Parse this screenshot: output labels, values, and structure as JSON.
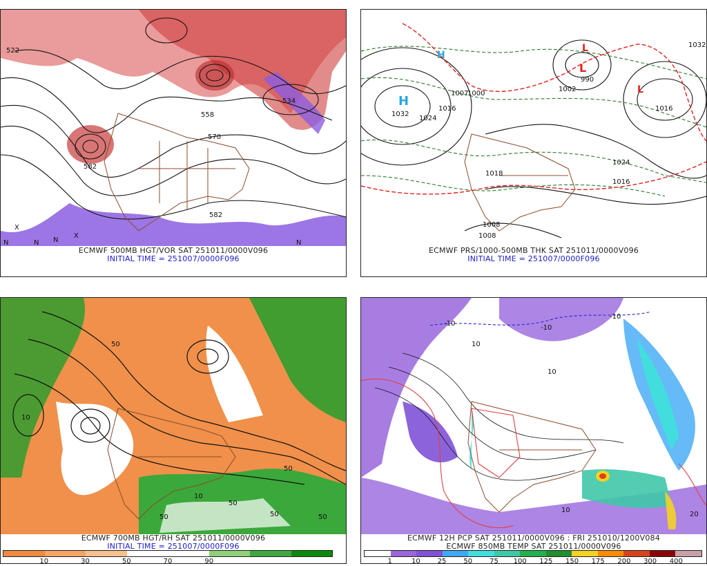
{
  "panels": [
    {
      "caption_line1": "ECMWF 500MB HGT/VOR SAT 251011/0000V096",
      "caption_line2": "INITIAL TIME = 251007/0000F096",
      "contour_labels": [
        "522",
        "582",
        "570",
        "558",
        "534",
        "582"
      ],
      "markers": [
        "N",
        "N",
        "N",
        "X",
        "X",
        "N"
      ]
    },
    {
      "caption_line1": "ECMWF PRS/1000-500MB THK SAT 251011/0000V096",
      "caption_line2": "INITIAL TIME = 251007/0000F096",
      "contour_labels": [
        "1032",
        "1024",
        "1016",
        "1000",
        "1007",
        "990",
        "1002",
        "1016",
        "1024",
        "1016",
        "1018",
        "1008",
        "1008",
        "1032"
      ],
      "highs": [
        "H",
        "H"
      ],
      "lows": [
        "L",
        "L",
        "L"
      ]
    },
    {
      "caption_line1": "ECMWF 700MB HGT/RH SAT 251011/0000V096",
      "caption_line2": "INITIAL TIME = 251007/0000F096",
      "contour_labels": [
        "10",
        "50",
        "50",
        "10",
        "50",
        "50",
        "50",
        "50"
      ],
      "legend_ticks": [
        "10",
        "30",
        "50",
        "70",
        "90"
      ],
      "legend_colors": [
        "#f08a40",
        "#f4a564",
        "#f7c08e",
        "#ffffff",
        "#ffffff",
        "#8fd07a",
        "#40a840",
        "#0a8a0a"
      ]
    },
    {
      "caption_line1": "ECMWF 12H PCP SAT 251011/0000V096 : FRI 251010/1200V084",
      "caption_line2": "ECMWF 850MB TEMP SAT 251011/0000V096",
      "contour_labels": [
        "-10",
        "-10",
        "-10",
        "10",
        "10",
        "10",
        "20"
      ],
      "legend_ticks": [
        "1",
        "10",
        "25",
        "50",
        "75",
        "100",
        "125",
        "150",
        "175",
        "200",
        "300",
        "400"
      ],
      "legend_colors": [
        "#ffffff",
        "#9966dd",
        "#7f52d6",
        "#3fa9f5",
        "#42dede",
        "#3fc8a8",
        "#22b14c",
        "#1f8f2f",
        "#f5d223",
        "#ff8c00",
        "#d8431c",
        "#8b0000",
        "#c8a0a8"
      ]
    }
  ],
  "colors": {
    "vorticity_red": "#d43030",
    "vorticity_purple": "#8855dd",
    "map_borders": "#8b4a2a",
    "pressure_contours": "#111111",
    "thickness_green": "#2a7a2a",
    "thickness_red": "#e02020",
    "rh_green": "#2e9e2e",
    "rh_orange": "#f0904a",
    "caption_blue": "#1a1ad0"
  }
}
